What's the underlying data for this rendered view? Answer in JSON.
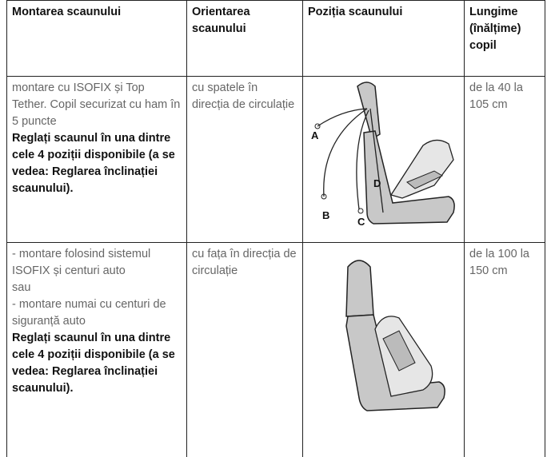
{
  "table": {
    "headers": [
      "Montarea scaunului",
      "Orientarea scaunului",
      "Poziția scaunului",
      "Lungime (înălțime) copil"
    ],
    "rows": [
      {
        "mounting": [
          "montare cu ISOFIX și Top Tether. Copil securizat cu ham în 5 puncte"
        ],
        "note": "Reglați scaunul în una dintre cele 4 poziții disponibile (a se vedea: Reglarea înclinației scaunului).",
        "orientation": "cu spatele în direcția de circulație",
        "figure_labels": [
          "A",
          "B",
          "C",
          "D"
        ],
        "length": "de la 40 la 105 cm"
      },
      {
        "mounting": [
          "- montare folosind sistemul ISOFIX și centuri auto",
          "sau",
          "- montare numai cu centuri de siguranță auto"
        ],
        "note": "Reglați scaunul în una dintre cele 4 poziții disponibile (a se vedea: Reglarea înclinației scaunului).",
        "orientation": "cu fața în direcția de circulație",
        "length": "de la 100 la 150 cm"
      }
    ]
  }
}
